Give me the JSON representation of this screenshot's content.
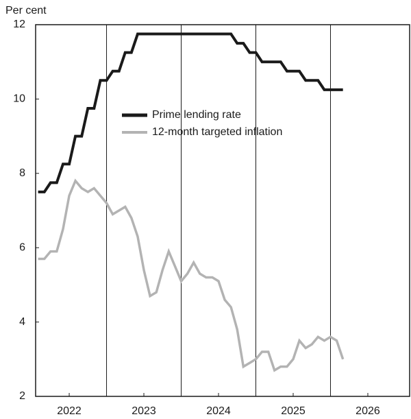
{
  "chart_data": {
    "type": "line",
    "y_label": "Per cent",
    "x": [
      2022.083,
      2022.167,
      2022.25,
      2022.333,
      2022.417,
      2022.5,
      2022.583,
      2022.667,
      2022.75,
      2022.833,
      2022.917,
      2023.0,
      2023.083,
      2023.167,
      2023.25,
      2023.333,
      2023.417,
      2023.5,
      2023.583,
      2023.667,
      2023.75,
      2023.833,
      2023.917,
      2024.0,
      2024.083,
      2024.167,
      2024.25,
      2024.333,
      2024.417,
      2024.5,
      2024.583,
      2024.667,
      2024.75,
      2024.833,
      2024.917,
      2025.0,
      2025.083,
      2025.167,
      2025.25,
      2025.333,
      2025.417,
      2025.5,
      2025.583,
      2025.667,
      2025.75,
      2025.833,
      2025.917,
      2026.0,
      2026.083,
      2026.167
    ],
    "series": [
      {
        "name": "Prime lending rate",
        "color": "#1a1a1a",
        "values": [
          7.5,
          7.5,
          7.75,
          7.75,
          8.25,
          8.25,
          9.0,
          9.0,
          9.75,
          9.75,
          10.5,
          10.5,
          10.75,
          10.75,
          11.25,
          11.25,
          11.75,
          11.75,
          11.75,
          11.75,
          11.75,
          11.75,
          11.75,
          11.75,
          11.75,
          11.75,
          11.75,
          11.75,
          11.75,
          11.75,
          11.75,
          11.75,
          11.5,
          11.5,
          11.25,
          11.25,
          11.0,
          11.0,
          11.0,
          11.0,
          10.75,
          10.75,
          10.75,
          10.5,
          10.5,
          10.5,
          10.25,
          10.25,
          10.25,
          10.25
        ]
      },
      {
        "name": "12-month targeted inflation",
        "color": "#b3b3b3",
        "values": [
          5.7,
          5.7,
          5.9,
          5.9,
          6.5,
          7.4,
          7.8,
          7.6,
          7.5,
          7.6,
          7.4,
          7.2,
          6.9,
          7.0,
          7.1,
          6.8,
          6.3,
          5.4,
          4.7,
          4.8,
          5.4,
          5.9,
          5.5,
          5.1,
          5.3,
          5.6,
          5.3,
          5.2,
          5.2,
          5.1,
          4.6,
          4.4,
          3.8,
          2.8,
          2.9,
          3.0,
          3.2,
          3.2,
          2.7,
          2.8,
          2.8,
          3.0,
          3.5,
          3.3,
          3.4,
          3.6,
          3.5,
          3.6,
          3.5,
          3.0
        ]
      }
    ],
    "xlim": [
      2022.05,
      2027.06
    ],
    "xticks": [
      {
        "value": 2022.5,
        "label": "2022"
      },
      {
        "value": 2023.5,
        "label": "2023"
      },
      {
        "value": 2024.5,
        "label": "2024"
      },
      {
        "value": 2025.5,
        "label": "2025"
      },
      {
        "value": 2026.5,
        "label": "2026"
      }
    ],
    "xgrid": [
      2023,
      2024,
      2025,
      2026
    ],
    "ylim": [
      2,
      12
    ],
    "yticks": [
      2,
      4,
      6,
      8,
      10,
      12
    ]
  }
}
